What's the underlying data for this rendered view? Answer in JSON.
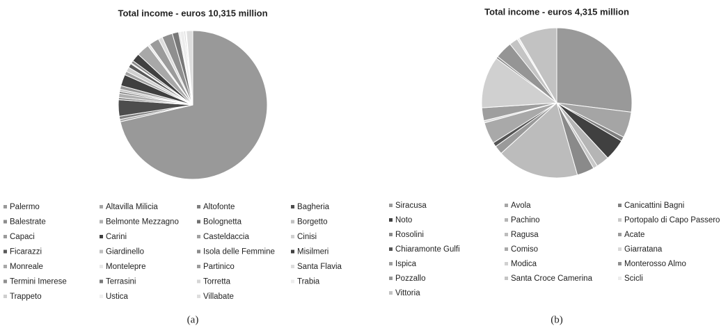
{
  "chart_data": [
    {
      "type": "pie",
      "title": "Total income - euros 10,315 million",
      "caption": "(a)",
      "categories": [
        "Palermo",
        "Altavilla Milicia",
        "Altofonte",
        "Bagheria",
        "Balestrate",
        "Belmonte Mezzagno",
        "Bolognetta",
        "Borgetto",
        "Capaci",
        "Carini",
        "Casteldaccia",
        "Cinisi",
        "Ficarazzi",
        "Giardinello",
        "Isola delle Femmine",
        "Misilmeri",
        "Monreale",
        "Montelepre",
        "Partinico",
        "Santa Flavia",
        "Termini Imerese",
        "Terrasini",
        "Torretta",
        "Trabia",
        "Trappeto",
        "Ustica",
        "Villabate"
      ],
      "values": [
        72,
        0.5,
        0.7,
        3.6,
        0.5,
        0.9,
        0.4,
        0.5,
        0.8,
        2.5,
        0.8,
        1.0,
        0.9,
        0.2,
        0.6,
        1.8,
        2.8,
        0.5,
        2.2,
        0.9,
        2.3,
        1.4,
        0.3,
        0.9,
        0.3,
        0.2,
        1.4
      ],
      "colors": [
        "#999999",
        "#a5a5a5",
        "#7f7f7f",
        "#4d4d4d",
        "#8c8c8c",
        "#b0b0b0",
        "#6f6f6f",
        "#c0c0c0",
        "#9a9a9a",
        "#3f3f3f",
        "#a0a0a0",
        "#d0d0d0",
        "#5a5a5a",
        "#bdbdbd",
        "#8a8a8a",
        "#404040",
        "#a8a8a8",
        "#e8e8e8",
        "#9b9b9b",
        "#dcdcdc",
        "#8f8f8f",
        "#787878",
        "#d5d5d5",
        "#ededed",
        "#cfcfcf",
        "#efefef",
        "#dedede"
      ]
    },
    {
      "type": "pie",
      "title": "Total income - euros 4,315 million",
      "caption": "(b)",
      "categories": [
        "Siracusa",
        "Avola",
        "Canicattini Bagni",
        "Noto",
        "Pachino",
        "Portopalo di Capo Passero",
        "Rosolini",
        "Ragusa",
        "Acate",
        "Chiaramonte Gulfi",
        "Comiso",
        "Giarratana",
        "Ispica",
        "Modica",
        "Monterosso Almo",
        "Pozzallo",
        "Santa Croce Camerina",
        "Scicli",
        "Vittoria"
      ],
      "values": [
        29,
        6,
        1,
        5,
        3,
        1,
        4,
        19,
        2,
        1,
        5,
        0.5,
        3,
        12,
        0.5,
        4,
        2,
        0.5,
        9
      ],
      "colors": [
        "#999999",
        "#a5a5a5",
        "#7f7f7f",
        "#404040",
        "#b5b5b5",
        "#c8c8c8",
        "#8a8a8a",
        "#bcbcbc",
        "#9a9a9a",
        "#555555",
        "#a9a9a9",
        "#d8d8d8",
        "#9e9e9e",
        "#d0d0d0",
        "#8f8f8f",
        "#959595",
        "#c4c4c4",
        "#ececec",
        "#c2c2c2"
      ]
    }
  ]
}
